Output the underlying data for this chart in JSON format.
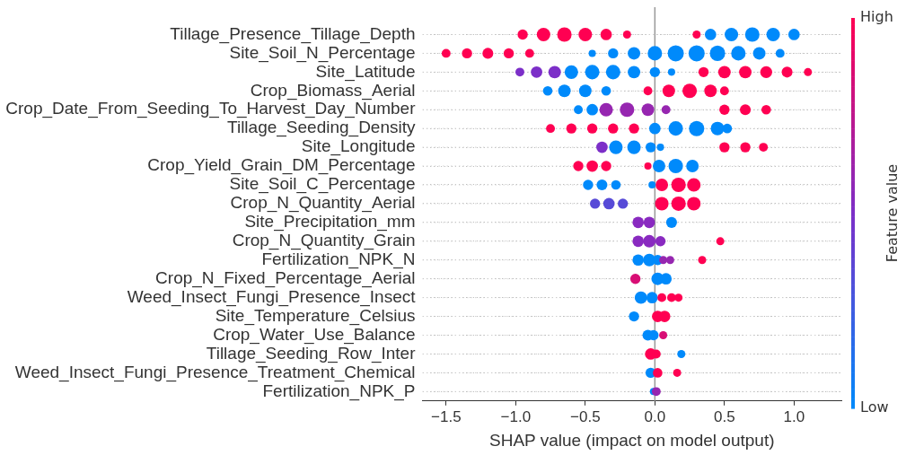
{
  "chart_data": {
    "type": "bubble",
    "orientation": "horizontal",
    "xlabel": "SHAP value (impact on model output)",
    "clabel": "Feature value",
    "clim": [
      0,
      1
    ],
    "cticks": [
      {
        "value": 0,
        "label": "Low"
      },
      {
        "value": 1,
        "label": "High"
      }
    ],
    "categories": [
      "Tillage_Presence_Tillage_Depth",
      "Site_Soil_N_Percentage",
      "Site_Latitude",
      "Crop_Biomass_Aerial",
      "Crop_Date_From_Seeding_To_Harvest_Day_Number",
      "Tillage_Seeding_Density",
      "Site_Longitude",
      "Crop_Yield_Grain_DM_Percentage",
      "Site_Soil_C_Percentage",
      "Crop_N_Quantity_Aerial",
      "Site_Precipitation_mm",
      "Crop_N_Quantity_Grain",
      "Fertilization_NPK_N",
      "Crop_N_Fixed_Percentage_Aerial",
      "Weed_Insect_Fungi_Presence_Insect",
      "Site_Temperature_Celsius",
      "Crop_Water_Use_Balance",
      "Tillage_Seeding_Row_Inter",
      "Weed_Insect_Fungi_Presence_Treatment_Chemical",
      "Fertilization_NPK_P"
    ],
    "xlim": [
      -1.67,
      1.34
    ],
    "xticks": [
      {
        "value": -1.5,
        "label": "−1.5"
      },
      {
        "value": -1.0,
        "label": "−1.0"
      },
      {
        "value": -0.5,
        "label": "−0.5"
      },
      {
        "value": 0,
        "label": "0.0"
      },
      {
        "value": 0.5,
        "label": "0.5"
      },
      {
        "value": 1.0,
        "label": "1.0"
      }
    ],
    "grid": "y",
    "legend": false,
    "ref_lines": [
      {
        "axis": "x",
        "value": 0,
        "color": "#999999"
      }
    ],
    "series": [
      {
        "x": [
          "Tillage_Presence_Tillage_Depth",
          "Tillage_Presence_Tillage_Depth",
          "Tillage_Presence_Tillage_Depth",
          "Tillage_Presence_Tillage_Depth",
          "Tillage_Presence_Tillage_Depth",
          "Tillage_Presence_Tillage_Depth",
          "Tillage_Presence_Tillage_Depth",
          "Tillage_Presence_Tillage_Depth",
          "Tillage_Presence_Tillage_Depth",
          "Tillage_Presence_Tillage_Depth",
          "Tillage_Presence_Tillage_Depth",
          "Tillage_Presence_Tillage_Depth"
        ],
        "values": [
          -0.95,
          -0.8,
          -0.65,
          -0.5,
          -0.35,
          -0.2,
          0.3,
          0.4,
          0.55,
          0.7,
          0.85,
          1.0
        ],
        "sizes": [
          0.4,
          0.7,
          0.8,
          0.7,
          0.5,
          0.25,
          0.25,
          0.5,
          0.7,
          0.8,
          0.7,
          0.5
        ],
        "colors": [
          "#ff0052",
          "#ff0052",
          "#ff0052",
          "#ff0052",
          "#ff0052",
          "#ff0052",
          "#ff0052",
          "#008afb",
          "#008afb",
          "#008afb",
          "#008afb",
          "#008afb"
        ]
      },
      {
        "x": [
          "Site_Soil_N_Percentage",
          "Site_Soil_N_Percentage",
          "Site_Soil_N_Percentage",
          "Site_Soil_N_Percentage",
          "Site_Soil_N_Percentage",
          "Site_Soil_N_Percentage",
          "Site_Soil_N_Percentage",
          "Site_Soil_N_Percentage",
          "Site_Soil_N_Percentage",
          "Site_Soil_N_Percentage",
          "Site_Soil_N_Percentage",
          "Site_Soil_N_Percentage",
          "Site_Soil_N_Percentage",
          "Site_Soil_N_Percentage",
          "Site_Soil_N_Percentage"
        ],
        "values": [
          -1.5,
          -1.35,
          -1.2,
          -1.05,
          -0.9,
          -0.45,
          -0.3,
          -0.15,
          0.0,
          0.15,
          0.3,
          0.45,
          0.6,
          0.75,
          0.9
        ],
        "sizes": [
          0.3,
          0.4,
          0.45,
          0.4,
          0.3,
          0.2,
          0.4,
          0.6,
          0.8,
          1,
          1,
          0.9,
          0.8,
          0.6,
          0.3
        ],
        "colors": [
          "#ff0052",
          "#ff0052",
          "#ff0052",
          "#ff0052",
          "#ff0052",
          "#008afb",
          "#008afb",
          "#008afb",
          "#008afb",
          "#008afb",
          "#008afb",
          "#008afb",
          "#008afb",
          "#008afb",
          "#008afb"
        ]
      },
      {
        "x": [
          "Site_Latitude",
          "Site_Latitude",
          "Site_Latitude",
          "Site_Latitude",
          "Site_Latitude",
          "Site_Latitude",
          "Site_Latitude",
          "Site_Latitude",
          "Site_Latitude",
          "Site_Latitude",
          "Site_Latitude",
          "Site_Latitude",
          "Site_Latitude",
          "Site_Latitude",
          "Site_Latitude"
        ],
        "values": [
          -0.97,
          -0.85,
          -0.72,
          -0.6,
          -0.45,
          -0.3,
          -0.15,
          0.0,
          0.12,
          0.35,
          0.5,
          0.65,
          0.8,
          0.95,
          1.1
        ],
        "sizes": [
          0.3,
          0.5,
          0.6,
          0.7,
          0.8,
          0.8,
          0.6,
          0.4,
          0.2,
          0.4,
          0.6,
          0.6,
          0.55,
          0.45,
          0.25
        ],
        "colors": [
          "#7c2fc8",
          "#7c2fc8",
          "#7c2fc8",
          "#008afb",
          "#008afb",
          "#008afb",
          "#008afb",
          "#008afb",
          "#008afb",
          "#ff0052",
          "#ff0052",
          "#ff0052",
          "#ff0052",
          "#ff0052",
          "#ff0052"
        ]
      },
      {
        "x": [
          "Crop_Biomass_Aerial",
          "Crop_Biomass_Aerial",
          "Crop_Biomass_Aerial",
          "Crop_Biomass_Aerial",
          "Crop_Biomass_Aerial",
          "Crop_Biomass_Aerial",
          "Crop_Biomass_Aerial",
          "Crop_Biomass_Aerial",
          "Crop_Biomass_Aerial"
        ],
        "values": [
          -0.77,
          -0.65,
          -0.5,
          -0.35,
          -0.05,
          0.1,
          0.25,
          0.4,
          0.5
        ],
        "sizes": [
          0.35,
          0.6,
          0.6,
          0.35,
          0.3,
          0.6,
          0.8,
          0.6,
          0.3
        ],
        "colors": [
          "#008afb",
          "#008afb",
          "#008afb",
          "#008afb",
          "#ff0052",
          "#ff0052",
          "#ff0052",
          "#ff0052",
          "#ff0052"
        ]
      },
      {
        "x": [
          "Crop_Date_From_Seeding_To_Harvest_Day_Number",
          "Crop_Date_From_Seeding_To_Harvest_Day_Number",
          "Crop_Date_From_Seeding_To_Harvest_Day_Number",
          "Crop_Date_From_Seeding_To_Harvest_Day_Number",
          "Crop_Date_From_Seeding_To_Harvest_Day_Number",
          "Crop_Date_From_Seeding_To_Harvest_Day_Number",
          "Crop_Date_From_Seeding_To_Harvest_Day_Number",
          "Crop_Date_From_Seeding_To_Harvest_Day_Number",
          "Crop_Date_From_Seeding_To_Harvest_Day_Number"
        ],
        "values": [
          -0.55,
          -0.45,
          -0.35,
          -0.2,
          -0.05,
          0.08,
          0.5,
          0.65,
          0.8
        ],
        "sizes": [
          0.3,
          0.5,
          0.7,
          0.8,
          0.6,
          0.3,
          0.4,
          0.45,
          0.35
        ],
        "colors": [
          "#008afb",
          "#008afb",
          "#9626b0",
          "#9626b0",
          "#9626b0",
          "#9626b0",
          "#ff0052",
          "#ff0052",
          "#ff0052"
        ]
      },
      {
        "x": [
          "Tillage_Seeding_Density",
          "Tillage_Seeding_Density",
          "Tillage_Seeding_Density",
          "Tillage_Seeding_Density",
          "Tillage_Seeding_Density",
          "Tillage_Seeding_Density",
          "Tillage_Seeding_Density",
          "Tillage_Seeding_Density",
          "Tillage_Seeding_Density",
          "Tillage_Seeding_Density"
        ],
        "values": [
          -0.75,
          -0.6,
          -0.45,
          -0.3,
          -0.15,
          0.0,
          0.15,
          0.3,
          0.45,
          0.52
        ],
        "sizes": [
          0.3,
          0.4,
          0.4,
          0.4,
          0.4,
          0.5,
          0.8,
          0.9,
          0.7,
          0.35
        ],
        "colors": [
          "#ff0052",
          "#ff0052",
          "#ff0052",
          "#ff0052",
          "#ff0052",
          "#008afb",
          "#008afb",
          "#008afb",
          "#008afb",
          "#008afb"
        ]
      },
      {
        "x": [
          "Site_Longitude",
          "Site_Longitude",
          "Site_Longitude",
          "Site_Longitude",
          "Site_Longitude",
          "Site_Longitude",
          "Site_Longitude",
          "Site_Longitude"
        ],
        "values": [
          -0.38,
          -0.28,
          -0.15,
          -0.03,
          0.04,
          0.5,
          0.65,
          0.78
        ],
        "sizes": [
          0.5,
          0.7,
          0.7,
          0.4,
          0.2,
          0.4,
          0.4,
          0.3
        ],
        "colors": [
          "#7c2fc8",
          "#008afb",
          "#008afb",
          "#008afb",
          "#008afb",
          "#ff0052",
          "#ff0052",
          "#ff0052"
        ]
      },
      {
        "x": [
          "Crop_Yield_Grain_DM_Percentage",
          "Crop_Yield_Grain_DM_Percentage",
          "Crop_Yield_Grain_DM_Percentage",
          "Crop_Yield_Grain_DM_Percentage",
          "Crop_Yield_Grain_DM_Percentage",
          "Crop_Yield_Grain_DM_Percentage",
          "Crop_Yield_Grain_DM_Percentage"
        ],
        "values": [
          -0.55,
          -0.45,
          -0.35,
          -0.05,
          0.03,
          0.15,
          0.27
        ],
        "sizes": [
          0.4,
          0.5,
          0.4,
          0.2,
          0.6,
          0.8,
          0.6
        ],
        "colors": [
          "#ff0052",
          "#ff0052",
          "#ff0052",
          "#ff0052",
          "#008afb",
          "#008afb",
          "#008afb"
        ]
      },
      {
        "x": [
          "Site_Soil_C_Percentage",
          "Site_Soil_C_Percentage",
          "Site_Soil_C_Percentage",
          "Site_Soil_C_Percentage",
          "Site_Soil_C_Percentage",
          "Site_Soil_C_Percentage",
          "Site_Soil_C_Percentage"
        ],
        "values": [
          -0.48,
          -0.38,
          -0.28,
          -0.02,
          0.05,
          0.17,
          0.28
        ],
        "sizes": [
          0.4,
          0.45,
          0.35,
          0.2,
          0.6,
          0.8,
          0.7
        ],
        "colors": [
          "#008afb",
          "#008afb",
          "#008afb",
          "#008afb",
          "#ff0052",
          "#ff0052",
          "#ff0052"
        ]
      },
      {
        "x": [
          "Crop_N_Quantity_Aerial",
          "Crop_N_Quantity_Aerial",
          "Crop_N_Quantity_Aerial",
          "Crop_N_Quantity_Aerial",
          "Crop_N_Quantity_Aerial",
          "Crop_N_Quantity_Aerial"
        ],
        "values": [
          -0.43,
          -0.33,
          -0.23,
          0.05,
          0.17,
          0.28
        ],
        "sizes": [
          0.4,
          0.5,
          0.4,
          0.7,
          0.8,
          0.7
        ],
        "colors": [
          "#574ad7",
          "#574ad7",
          "#574ad7",
          "#ff0052",
          "#ff0052",
          "#ff0052"
        ]
      },
      {
        "x": [
          "Site_Precipitation_mm",
          "Site_Precipitation_mm",
          "Site_Precipitation_mm"
        ],
        "values": [
          -0.12,
          -0.04,
          0.12
        ],
        "sizes": [
          0.5,
          0.5,
          0.45
        ],
        "colors": [
          "#892ac0",
          "#892ac0",
          "#008afb"
        ]
      },
      {
        "x": [
          "Crop_N_Quantity_Grain",
          "Crop_N_Quantity_Grain",
          "Crop_N_Quantity_Grain",
          "Crop_N_Quantity_Grain"
        ],
        "values": [
          -0.12,
          -0.04,
          0.04,
          0.47
        ],
        "sizes": [
          0.5,
          0.6,
          0.4,
          0.25
        ],
        "colors": [
          "#892ac0",
          "#892ac0",
          "#892ac0",
          "#ff0052"
        ]
      },
      {
        "x": [
          "Fertilization_NPK_N",
          "Fertilization_NPK_N",
          "Fertilization_NPK_N",
          "Fertilization_NPK_N",
          "Fertilization_NPK_N",
          "Fertilization_NPK_N"
        ],
        "values": [
          -0.12,
          -0.04,
          0.02,
          0.06,
          0.11,
          0.34
        ],
        "sizes": [
          0.5,
          0.6,
          0.4,
          0.25,
          0.25,
          0.25
        ],
        "colors": [
          "#008afb",
          "#008afb",
          "#008afb",
          "#9626b0",
          "#9626b0",
          "#ff0052"
        ]
      },
      {
        "x": [
          "Crop_N_Fixed_Percentage_Aerial",
          "Crop_N_Fixed_Percentage_Aerial",
          "Crop_N_Fixed_Percentage_Aerial"
        ],
        "values": [
          -0.14,
          0.02,
          0.08
        ],
        "sizes": [
          0.4,
          0.6,
          0.5
        ],
        "colors": [
          "#d80e75",
          "#008afb",
          "#008afb"
        ]
      },
      {
        "x": [
          "Weed_Insect_Fungi_Presence_Insect",
          "Weed_Insect_Fungi_Presence_Insect",
          "Weed_Insect_Fungi_Presence_Insect",
          "Weed_Insect_Fungi_Presence_Insect",
          "Weed_Insect_Fungi_Presence_Insect"
        ],
        "values": [
          -0.1,
          -0.02,
          0.05,
          0.12,
          0.17
        ],
        "sizes": [
          0.6,
          0.5,
          0.3,
          0.3,
          0.25
        ],
        "colors": [
          "#008afb",
          "#008afb",
          "#ff0052",
          "#ff0052",
          "#ff0052"
        ]
      },
      {
        "x": [
          "Site_Temperature_Celsius",
          "Site_Temperature_Celsius",
          "Site_Temperature_Celsius"
        ],
        "values": [
          -0.15,
          0.02,
          0.07
        ],
        "sizes": [
          0.4,
          0.5,
          0.5
        ],
        "colors": [
          "#008afb",
          "#ff0052",
          "#ff0052"
        ]
      },
      {
        "x": [
          "Crop_Water_Use_Balance",
          "Crop_Water_Use_Balance",
          "Crop_Water_Use_Balance"
        ],
        "values": [
          -0.05,
          -0.01,
          0.06
        ],
        "sizes": [
          0.45,
          0.4,
          0.25
        ],
        "colors": [
          "#008afb",
          "#008afb",
          "#d80e75"
        ]
      },
      {
        "x": [
          "Tillage_Seeding_Row_Inter",
          "Tillage_Seeding_Row_Inter",
          "Tillage_Seeding_Row_Inter"
        ],
        "values": [
          -0.03,
          0.01,
          0.19
        ],
        "sizes": [
          0.5,
          0.3,
          0.25
        ],
        "colors": [
          "#ff0052",
          "#ff0052",
          "#008afb"
        ]
      },
      {
        "x": [
          "Weed_Insect_Fungi_Presence_Treatment_Chemical",
          "Weed_Insect_Fungi_Presence_Treatment_Chemical",
          "Weed_Insect_Fungi_Presence_Treatment_Chemical"
        ],
        "values": [
          -0.03,
          0.02,
          0.16
        ],
        "sizes": [
          0.4,
          0.35,
          0.25
        ],
        "colors": [
          "#008afb",
          "#ff0052",
          "#ff0052"
        ]
      },
      {
        "x": [
          "Fertilization_NPK_P",
          "Fertilization_NPK_P"
        ],
        "values": [
          -0.01,
          0.01
        ],
        "sizes": [
          0.2,
          0.3
        ],
        "colors": [
          "#008afb",
          "#9626b0"
        ]
      }
    ]
  }
}
